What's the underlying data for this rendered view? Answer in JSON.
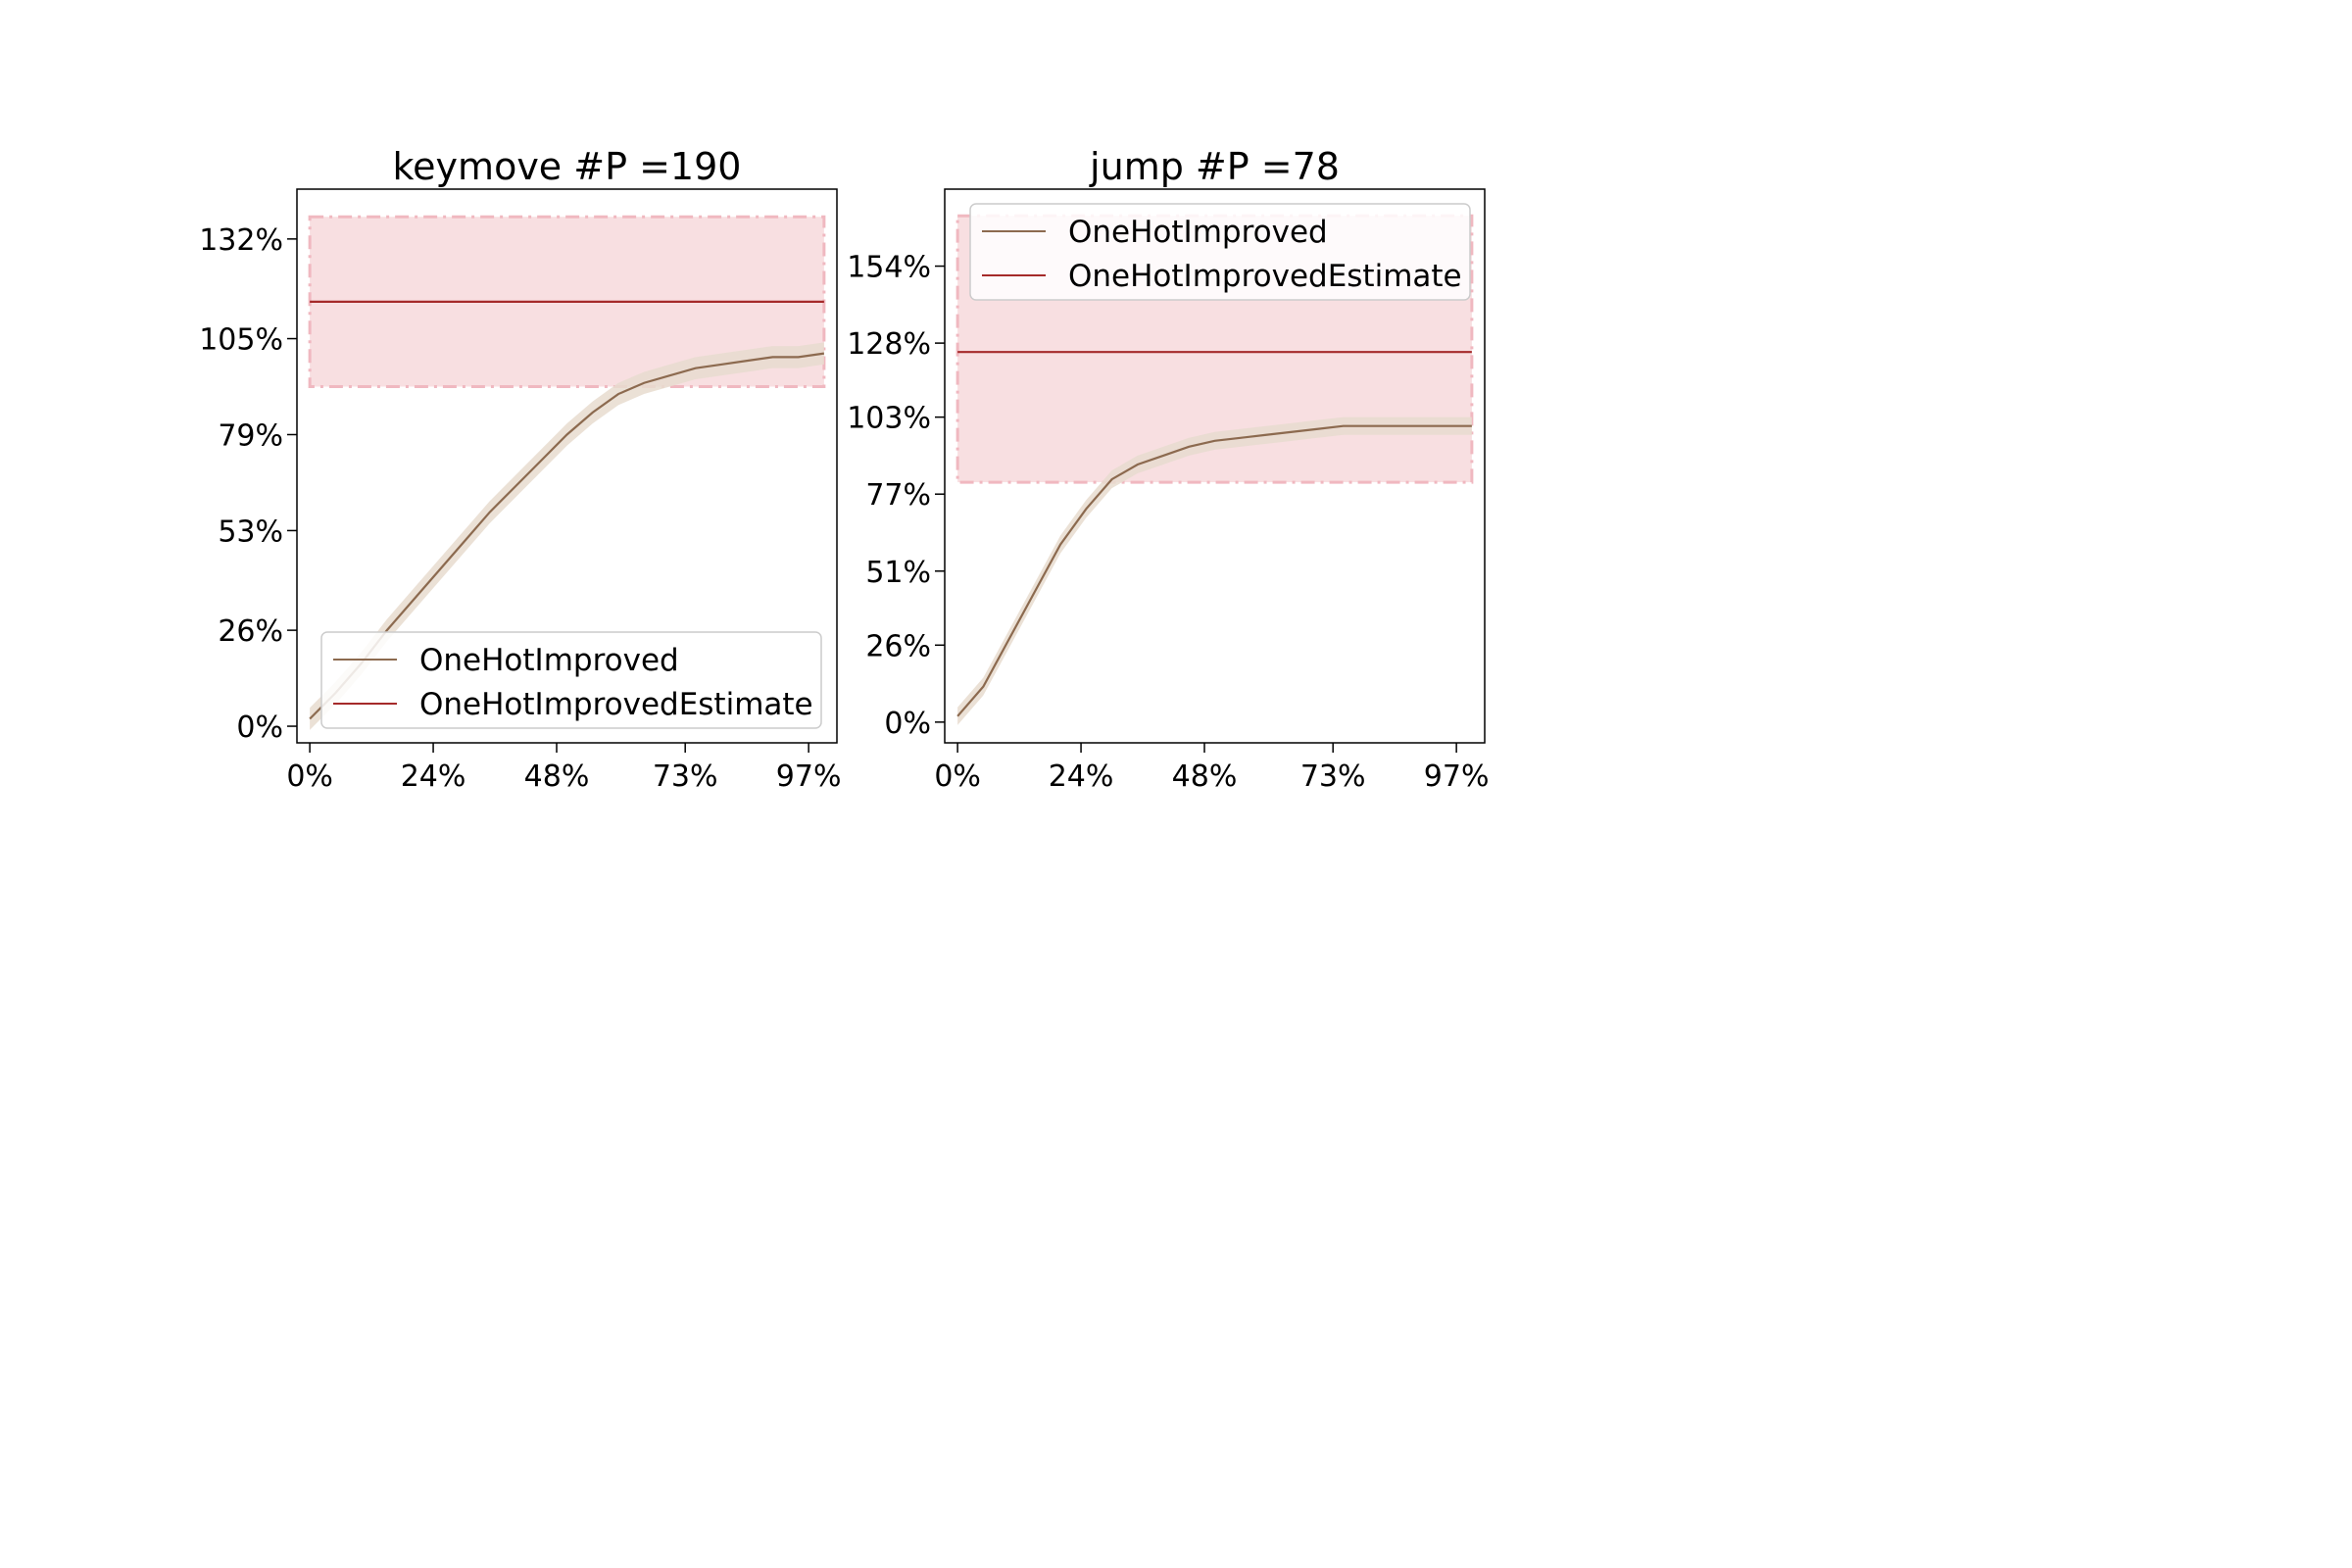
{
  "chart_data": [
    {
      "type": "line",
      "title": "keymove #P =190",
      "xlabel": "",
      "ylabel": "",
      "x_tick_labels": [
        "0%",
        "24%",
        "48%",
        "73%",
        "97%"
      ],
      "y_tick_labels": [
        "0%",
        "26%",
        "53%",
        "79%",
        "105%",
        "132%"
      ],
      "xlim": [
        -2.5,
        102.5
      ],
      "ylim": [
        -4.5,
        145.5
      ],
      "legend_position": "lower-right",
      "grid": false,
      "band": {
        "y_low": 92,
        "y_high": 138,
        "color": "#f8dfe1",
        "edge_color": "#f0b8c0"
      },
      "series": [
        {
          "name": "OneHotImproved",
          "color": "#8c6a4f",
          "x": [
            0,
            5,
            10,
            15,
            20,
            25,
            30,
            35,
            40,
            45,
            50,
            55,
            60,
            65,
            70,
            75,
            80,
            85,
            90,
            95,
            100
          ],
          "y": [
            2,
            9,
            17,
            26,
            34,
            42,
            50,
            58,
            65,
            72,
            79,
            85,
            90,
            93,
            95,
            97,
            98,
            99,
            100,
            100,
            101
          ],
          "spread": 3
        },
        {
          "name": "OneHotImprovedEstimate",
          "color": "#a52a2a",
          "x": [
            0,
            100
          ],
          "y": [
            115,
            115
          ]
        }
      ]
    },
    {
      "type": "line",
      "title": "jump #P =78",
      "xlabel": "",
      "ylabel": "",
      "x_tick_labels": [
        "0%",
        "24%",
        "48%",
        "73%",
        "97%"
      ],
      "y_tick_labels": [
        "0%",
        "26%",
        "51%",
        "77%",
        "103%",
        "128%",
        "154%"
      ],
      "xlim": [
        -2.5,
        102.5
      ],
      "ylim": [
        -7,
        180
      ],
      "legend_position": "upper-center",
      "grid": false,
      "band": {
        "y_low": 81,
        "y_high": 171,
        "color": "#f8dfe1",
        "edge_color": "#f0b8c0"
      },
      "series": [
        {
          "name": "OneHotImproved",
          "color": "#8c6a4f",
          "x": [
            0,
            5,
            10,
            15,
            20,
            25,
            30,
            35,
            40,
            45,
            50,
            55,
            60,
            65,
            70,
            75,
            80,
            85,
            90,
            95,
            100
          ],
          "y": [
            2,
            12,
            28,
            44,
            60,
            72,
            82,
            87,
            90,
            93,
            95,
            96,
            97,
            98,
            99,
            100,
            100,
            100,
            100,
            100,
            100
          ],
          "spread": 3
        },
        {
          "name": "OneHotImprovedEstimate",
          "color": "#a52a2a",
          "x": [
            0,
            100
          ],
          "y": [
            125,
            125
          ]
        }
      ]
    }
  ]
}
